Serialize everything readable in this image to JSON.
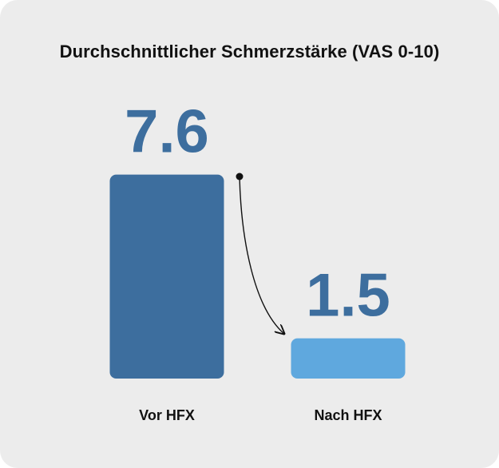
{
  "chart_data": {
    "type": "bar",
    "title": "Durchschnittlicher Schmerzstärke (VAS 0-10)",
    "categories": [
      "Vor HFX",
      "Nach HFX"
    ],
    "values": [
      7.6,
      1.5
    ],
    "value_labels": [
      "7.6",
      "1.5"
    ],
    "ylim": [
      0,
      10
    ],
    "grid": false,
    "colors": [
      "#3d6e9e",
      "#5fa8de"
    ],
    "annotation": "arrow-from-first-to-second-bar"
  }
}
